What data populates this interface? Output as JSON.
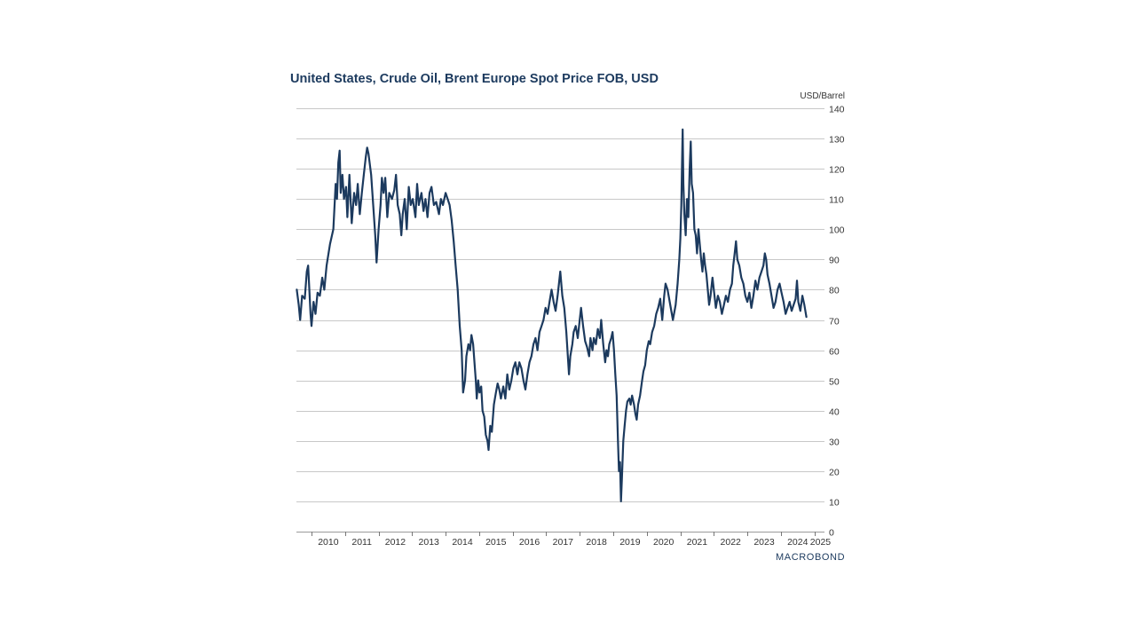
{
  "page": {
    "title": "United States, Crude Oil, Brent Europe Spot Price FOB, USD",
    "brand": "MACROBOND"
  },
  "chart_data": {
    "type": "line",
    "title": "United States, Crude Oil, Brent Europe Spot Price FOB, USD",
    "xlabel": "",
    "ylabel": "USD/Barrel",
    "ylim": [
      0,
      140
    ],
    "xlim": [
      2009.55,
      2025.3
    ],
    "yticks": [
      0,
      10,
      20,
      30,
      40,
      50,
      60,
      70,
      80,
      90,
      100,
      110,
      120,
      130,
      140
    ],
    "xtick_labels": [
      "2010",
      "2011",
      "2012",
      "2013",
      "2014",
      "2015",
      "2016",
      "2017",
      "2018",
      "2019",
      "2020",
      "2021",
      "2022",
      "2023",
      "2024",
      "2025"
    ],
    "grid": true,
    "line_color": "#1c3a5e",
    "series": [
      {
        "name": "Brent Europe Spot Price FOB",
        "points": [
          [
            2009.56,
            80
          ],
          [
            2009.62,
            75
          ],
          [
            2009.66,
            70
          ],
          [
            2009.72,
            78
          ],
          [
            2009.8,
            77
          ],
          [
            2009.86,
            86
          ],
          [
            2009.9,
            88
          ],
          [
            2009.97,
            72
          ],
          [
            2010.0,
            68
          ],
          [
            2010.06,
            76
          ],
          [
            2010.12,
            72
          ],
          [
            2010.18,
            79
          ],
          [
            2010.25,
            78
          ],
          [
            2010.32,
            84
          ],
          [
            2010.38,
            80
          ],
          [
            2010.45,
            88
          ],
          [
            2010.55,
            95
          ],
          [
            2010.65,
            100
          ],
          [
            2010.72,
            115
          ],
          [
            2010.76,
            110
          ],
          [
            2010.8,
            122
          ],
          [
            2010.84,
            126
          ],
          [
            2010.87,
            112
          ],
          [
            2010.92,
            118
          ],
          [
            2010.97,
            110
          ],
          [
            2011.03,
            114
          ],
          [
            2011.07,
            104
          ],
          [
            2011.13,
            118
          ],
          [
            2011.2,
            102
          ],
          [
            2011.27,
            112
          ],
          [
            2011.33,
            108
          ],
          [
            2011.38,
            115
          ],
          [
            2011.44,
            105
          ],
          [
            2011.5,
            112
          ],
          [
            2011.56,
            118
          ],
          [
            2011.62,
            124
          ],
          [
            2011.66,
            127
          ],
          [
            2011.7,
            125
          ],
          [
            2011.78,
            118
          ],
          [
            2011.84,
            108
          ],
          [
            2011.9,
            98
          ],
          [
            2011.94,
            89
          ],
          [
            2012.0,
            100
          ],
          [
            2012.06,
            108
          ],
          [
            2012.1,
            117
          ],
          [
            2012.15,
            112
          ],
          [
            2012.2,
            117
          ],
          [
            2012.26,
            104
          ],
          [
            2012.32,
            112
          ],
          [
            2012.4,
            110
          ],
          [
            2012.47,
            113
          ],
          [
            2012.52,
            118
          ],
          [
            2012.57,
            108
          ],
          [
            2012.63,
            105
          ],
          [
            2012.68,
            98
          ],
          [
            2012.72,
            105
          ],
          [
            2012.78,
            110
          ],
          [
            2012.84,
            100
          ],
          [
            2012.9,
            114
          ],
          [
            2012.96,
            108
          ],
          [
            2013.02,
            110
          ],
          [
            2013.1,
            104
          ],
          [
            2013.15,
            115
          ],
          [
            2013.2,
            108
          ],
          [
            2013.28,
            112
          ],
          [
            2013.34,
            106
          ],
          [
            2013.4,
            110
          ],
          [
            2013.46,
            104
          ],
          [
            2013.52,
            112
          ],
          [
            2013.58,
            114
          ],
          [
            2013.65,
            108
          ],
          [
            2013.72,
            109
          ],
          [
            2013.8,
            105
          ],
          [
            2013.86,
            110
          ],
          [
            2013.92,
            108
          ],
          [
            2014.0,
            112
          ],
          [
            2014.06,
            110
          ],
          [
            2014.12,
            108
          ],
          [
            2014.18,
            103
          ],
          [
            2014.24,
            96
          ],
          [
            2014.3,
            88
          ],
          [
            2014.36,
            80
          ],
          [
            2014.42,
            68
          ],
          [
            2014.48,
            60
          ],
          [
            2014.52,
            46
          ],
          [
            2014.58,
            50
          ],
          [
            2014.62,
            58
          ],
          [
            2014.68,
            62
          ],
          [
            2014.73,
            60
          ],
          [
            2014.77,
            65
          ],
          [
            2014.82,
            62
          ],
          [
            2014.86,
            56
          ],
          [
            2014.9,
            50
          ],
          [
            2014.93,
            44
          ],
          [
            2014.97,
            50
          ],
          [
            2015.01,
            46
          ],
          [
            2015.06,
            48
          ],
          [
            2015.1,
            40
          ],
          [
            2015.15,
            38
          ],
          [
            2015.2,
            32
          ],
          [
            2015.25,
            30
          ],
          [
            2015.28,
            27
          ],
          [
            2015.33,
            35
          ],
          [
            2015.38,
            33
          ],
          [
            2015.44,
            42
          ],
          [
            2015.5,
            46
          ],
          [
            2015.55,
            49
          ],
          [
            2015.6,
            47
          ],
          [
            2015.65,
            44
          ],
          [
            2015.72,
            48
          ],
          [
            2015.78,
            44
          ],
          [
            2015.84,
            52
          ],
          [
            2015.9,
            47
          ],
          [
            2015.96,
            50
          ],
          [
            2016.02,
            54
          ],
          [
            2016.08,
            56
          ],
          [
            2016.14,
            52
          ],
          [
            2016.2,
            56
          ],
          [
            2016.26,
            54
          ],
          [
            2016.32,
            50
          ],
          [
            2016.38,
            47
          ],
          [
            2016.44,
            52
          ],
          [
            2016.5,
            56
          ],
          [
            2016.56,
            58
          ],
          [
            2016.62,
            62
          ],
          [
            2016.68,
            64
          ],
          [
            2016.74,
            60
          ],
          [
            2016.8,
            66
          ],
          [
            2016.86,
            68
          ],
          [
            2016.92,
            70
          ],
          [
            2016.98,
            74
          ],
          [
            2017.04,
            72
          ],
          [
            2017.1,
            76
          ],
          [
            2017.16,
            80
          ],
          [
            2017.22,
            76
          ],
          [
            2017.28,
            73
          ],
          [
            2017.34,
            78
          ],
          [
            2017.38,
            82
          ],
          [
            2017.42,
            86
          ],
          [
            2017.48,
            78
          ],
          [
            2017.54,
            74
          ],
          [
            2017.6,
            66
          ],
          [
            2017.64,
            59
          ],
          [
            2017.68,
            52
          ],
          [
            2017.72,
            58
          ],
          [
            2017.78,
            62
          ],
          [
            2017.82,
            66
          ],
          [
            2017.88,
            68
          ],
          [
            2017.94,
            64
          ],
          [
            2018.0,
            70
          ],
          [
            2018.04,
            74
          ],
          [
            2018.1,
            68
          ],
          [
            2018.16,
            63
          ],
          [
            2018.22,
            61
          ],
          [
            2018.28,
            58
          ],
          [
            2018.32,
            64
          ],
          [
            2018.38,
            60
          ],
          [
            2018.42,
            64
          ],
          [
            2018.48,
            62
          ],
          [
            2018.54,
            67
          ],
          [
            2018.6,
            64
          ],
          [
            2018.64,
            70
          ],
          [
            2018.7,
            62
          ],
          [
            2018.76,
            56
          ],
          [
            2018.8,
            60
          ],
          [
            2018.84,
            58
          ],
          [
            2018.88,
            62
          ],
          [
            2018.94,
            64
          ],
          [
            2018.98,
            66
          ],
          [
            2019.02,
            60
          ],
          [
            2019.06,
            52
          ],
          [
            2019.1,
            45
          ],
          [
            2019.14,
            30
          ],
          [
            2019.17,
            20
          ],
          [
            2019.2,
            23
          ],
          [
            2019.23,
            10
          ],
          [
            2019.26,
            18
          ],
          [
            2019.3,
            30
          ],
          [
            2019.34,
            35
          ],
          [
            2019.38,
            40
          ],
          [
            2019.42,
            43
          ],
          [
            2019.48,
            44
          ],
          [
            2019.52,
            42
          ],
          [
            2019.56,
            45
          ],
          [
            2019.62,
            42
          ],
          [
            2019.66,
            39
          ],
          [
            2019.7,
            37
          ],
          [
            2019.74,
            42
          ],
          [
            2019.8,
            45
          ],
          [
            2019.86,
            50
          ],
          [
            2019.9,
            53
          ],
          [
            2019.95,
            55
          ],
          [
            2020.0,
            60
          ],
          [
            2020.06,
            63
          ],
          [
            2020.1,
            62
          ],
          [
            2020.16,
            66
          ],
          [
            2020.22,
            68
          ],
          [
            2020.28,
            72
          ],
          [
            2020.34,
            74
          ],
          [
            2020.4,
            77
          ],
          [
            2020.46,
            70
          ],
          [
            2020.52,
            78
          ],
          [
            2020.56,
            82
          ],
          [
            2020.62,
            80
          ],
          [
            2020.7,
            75
          ],
          [
            2020.78,
            70
          ],
          [
            2020.86,
            75
          ],
          [
            2020.92,
            82
          ],
          [
            2020.97,
            90
          ],
          [
            2021.0,
            97
          ],
          [
            2021.03,
            108
          ],
          [
            2021.05,
            120
          ],
          [
            2021.07,
            133
          ],
          [
            2021.09,
            115
          ],
          [
            2021.12,
            105
          ],
          [
            2021.16,
            98
          ],
          [
            2021.2,
            110
          ],
          [
            2021.24,
            104
          ],
          [
            2021.28,
            120
          ],
          [
            2021.31,
            129
          ],
          [
            2021.34,
            115
          ],
          [
            2021.38,
            112
          ],
          [
            2021.42,
            100
          ],
          [
            2021.46,
            98
          ],
          [
            2021.5,
            92
          ],
          [
            2021.54,
            100
          ],
          [
            2021.58,
            95
          ],
          [
            2021.62,
            90
          ],
          [
            2021.66,
            86
          ],
          [
            2021.7,
            92
          ],
          [
            2021.74,
            88
          ],
          [
            2021.78,
            85
          ],
          [
            2021.82,
            80
          ],
          [
            2021.86,
            75
          ],
          [
            2021.9,
            78
          ],
          [
            2021.96,
            84
          ],
          [
            2022.0,
            80
          ],
          [
            2022.06,
            74
          ],
          [
            2022.12,
            78
          ],
          [
            2022.18,
            76
          ],
          [
            2022.24,
            72
          ],
          [
            2022.3,
            75
          ],
          [
            2022.36,
            78
          ],
          [
            2022.42,
            76
          ],
          [
            2022.48,
            80
          ],
          [
            2022.54,
            82
          ],
          [
            2022.58,
            88
          ],
          [
            2022.62,
            92
          ],
          [
            2022.66,
            96
          ],
          [
            2022.7,
            90
          ],
          [
            2022.76,
            88
          ],
          [
            2022.82,
            84
          ],
          [
            2022.88,
            82
          ],
          [
            2022.94,
            78
          ],
          [
            2023.0,
            76
          ],
          [
            2023.06,
            79
          ],
          [
            2023.12,
            74
          ],
          [
            2023.18,
            78
          ],
          [
            2023.24,
            83
          ],
          [
            2023.3,
            80
          ],
          [
            2023.36,
            84
          ],
          [
            2023.42,
            86
          ],
          [
            2023.48,
            88
          ],
          [
            2023.52,
            92
          ],
          [
            2023.56,
            90
          ],
          [
            2023.6,
            85
          ],
          [
            2023.66,
            82
          ],
          [
            2023.72,
            78
          ],
          [
            2023.78,
            74
          ],
          [
            2023.84,
            76
          ],
          [
            2023.9,
            80
          ],
          [
            2023.96,
            82
          ],
          [
            2024.02,
            79
          ],
          [
            2024.08,
            76
          ],
          [
            2024.14,
            72
          ],
          [
            2024.2,
            74
          ],
          [
            2024.26,
            76
          ],
          [
            2024.32,
            73
          ],
          [
            2024.38,
            75
          ],
          [
            2024.44,
            77
          ],
          [
            2024.48,
            83
          ],
          [
            2024.52,
            76
          ],
          [
            2024.58,
            73
          ],
          [
            2024.64,
            78
          ],
          [
            2024.7,
            75
          ],
          [
            2024.76,
            71
          ]
        ]
      }
    ]
  }
}
